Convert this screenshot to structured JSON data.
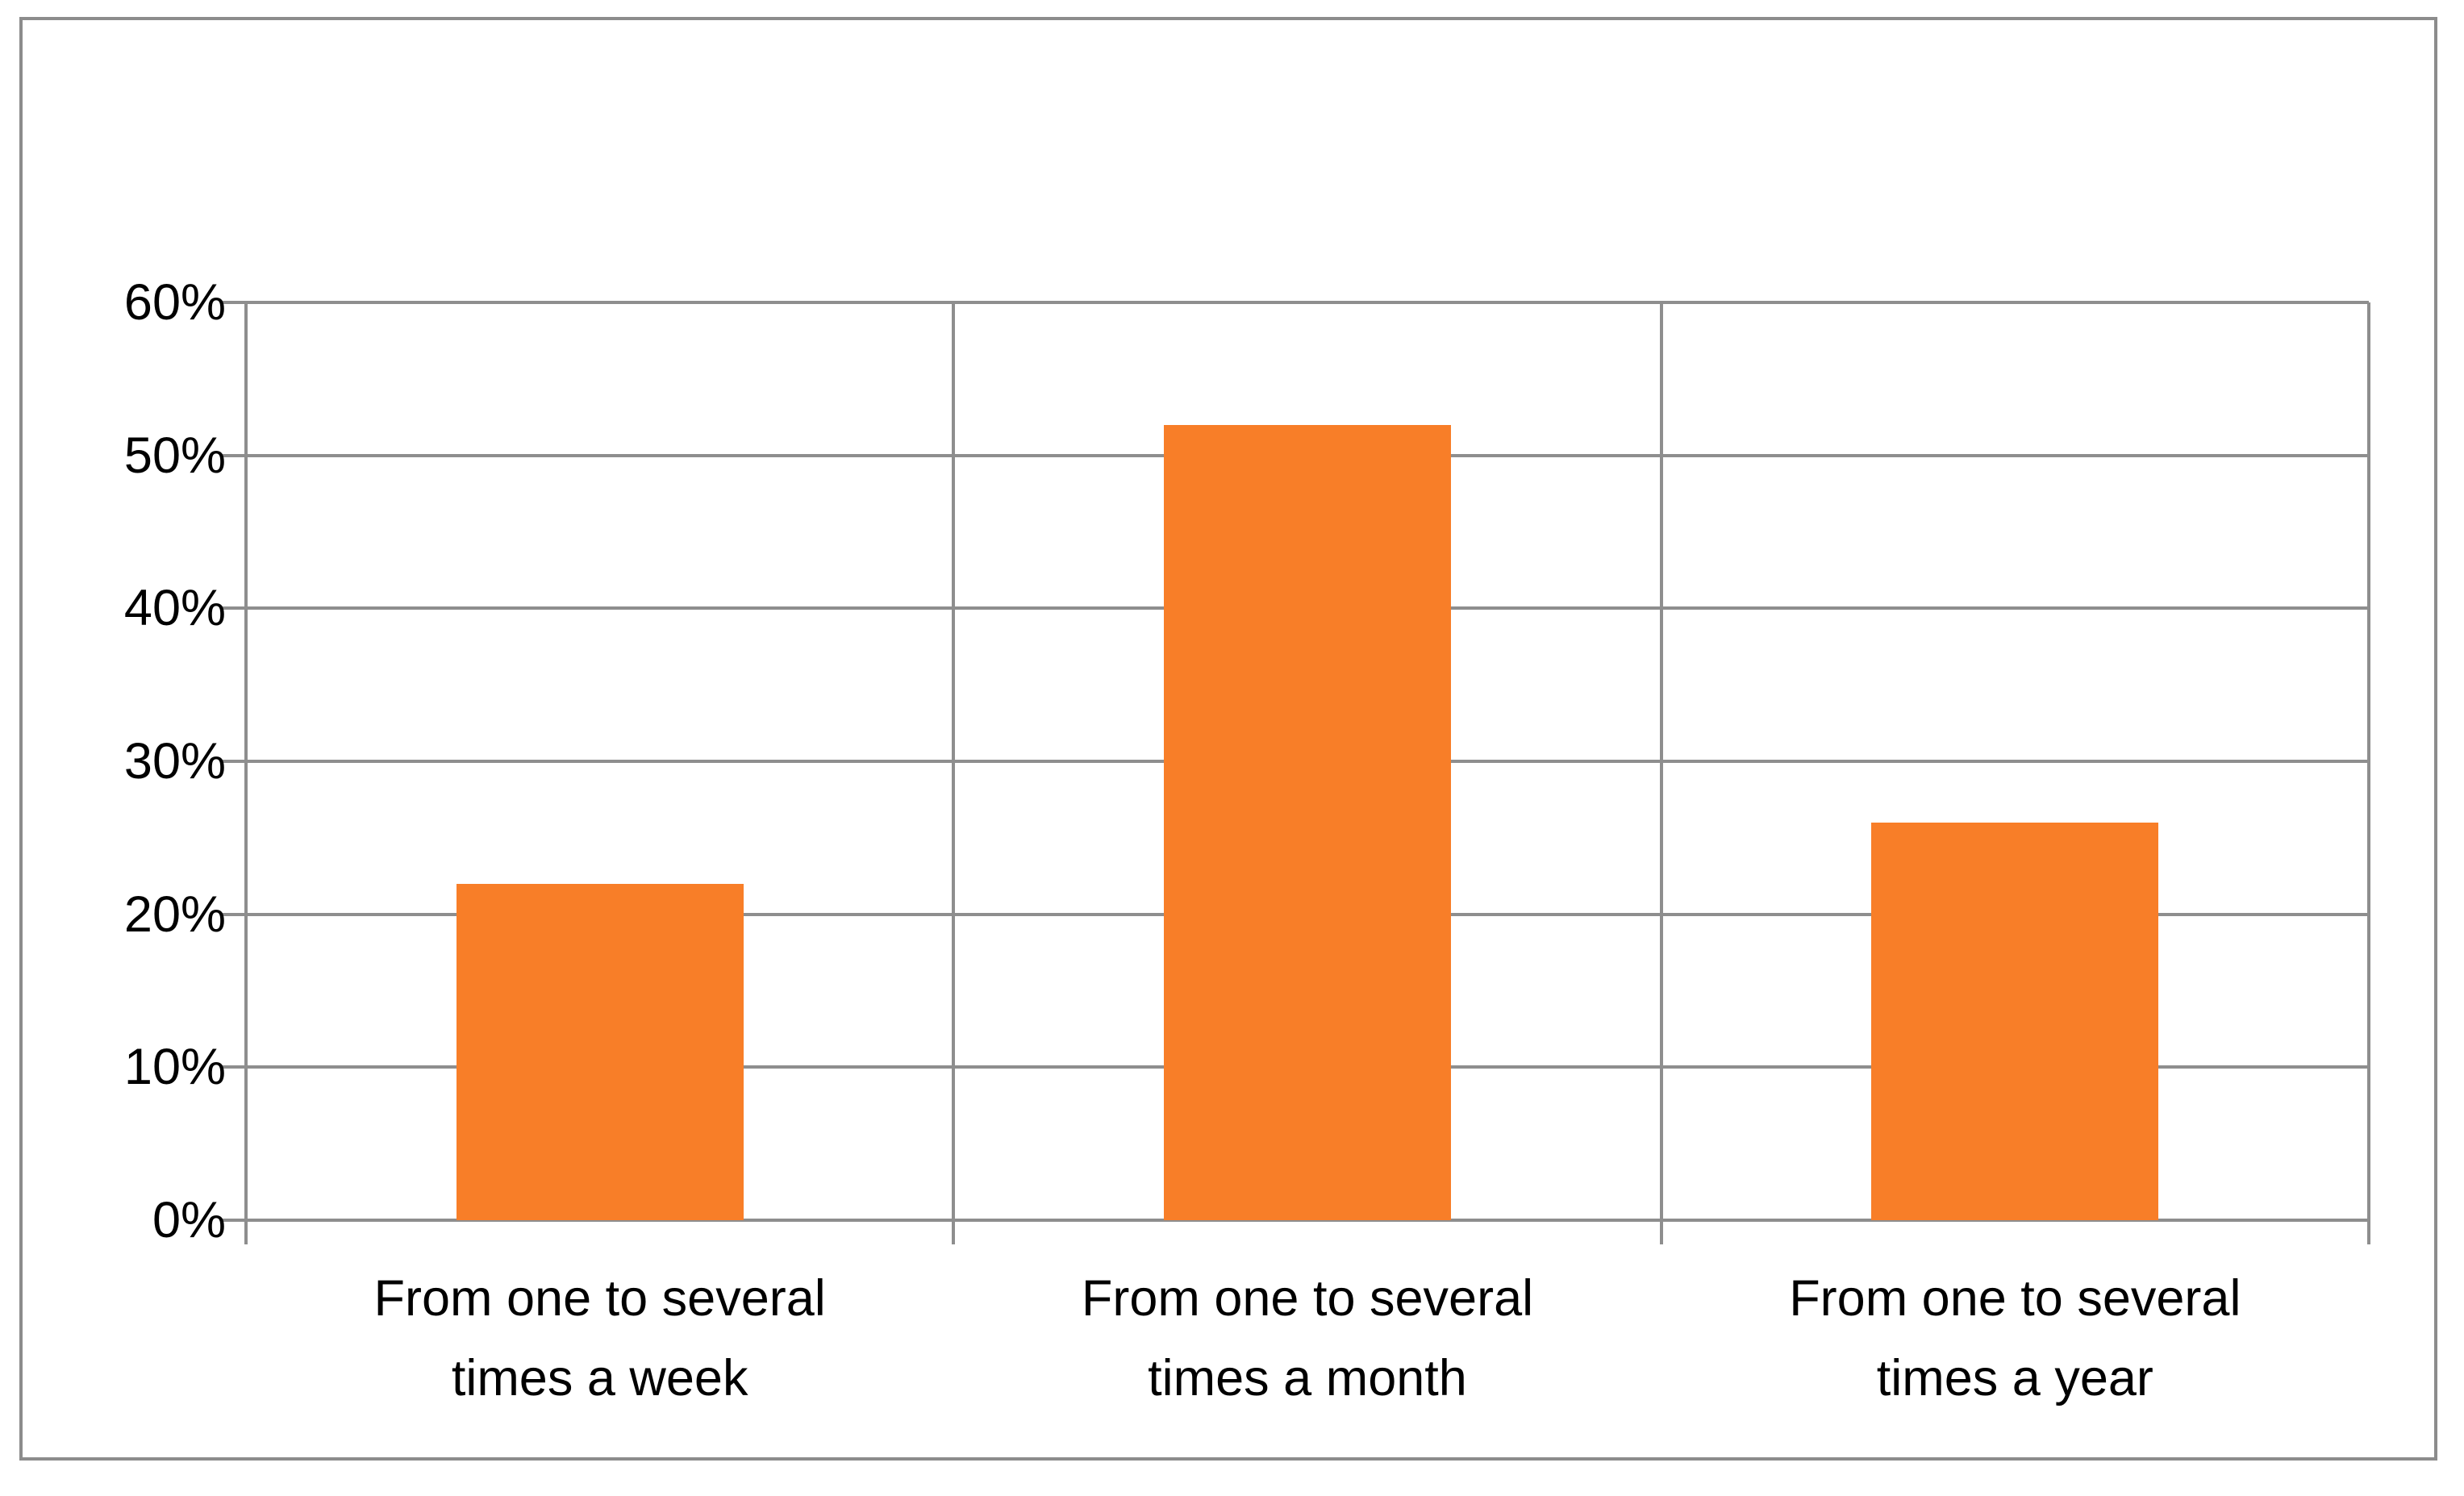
{
  "chart_data": {
    "type": "bar",
    "title": "",
    "categories": [
      "From one to several times a week",
      "From one to several times a month",
      "From one to several times a year"
    ],
    "category_lines": [
      [
        "From one to several",
        "times a week"
      ],
      [
        "From one to several",
        "times a month"
      ],
      [
        "From one to several",
        "times a year"
      ]
    ],
    "values": [
      22,
      52,
      26
    ],
    "unit": "%",
    "xlabel": "",
    "ylabel": "",
    "ylim": [
      0,
      60
    ],
    "y_tick_step": 10,
    "y_tick_labels": [
      "0%",
      "10%",
      "20%",
      "30%",
      "40%",
      "50%",
      "60%"
    ],
    "grid": true,
    "legend_position": "none",
    "colors": {
      "bar": "#F87E28",
      "grid": "#8E8E8E",
      "frame": "#8C8C8C",
      "text": "#000000",
      "background": "#FFFFFF"
    }
  }
}
